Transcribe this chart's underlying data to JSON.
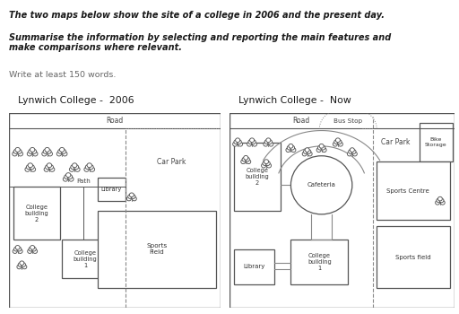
{
  "title_text": "The two maps below show the site of a college in 2006 and the present day.",
  "subtitle_text": "Summarise the information by selecting and reporting the main features and\nmake comparisons where relevant.",
  "instruction_text": "Write at least 150 words.",
  "map1_title": "Lynwich College -  2006",
  "map2_title": "Lynwich College -  Now",
  "bg_color": "#ffffff",
  "text_color": "#333333",
  "box_edge_color": "#555555"
}
